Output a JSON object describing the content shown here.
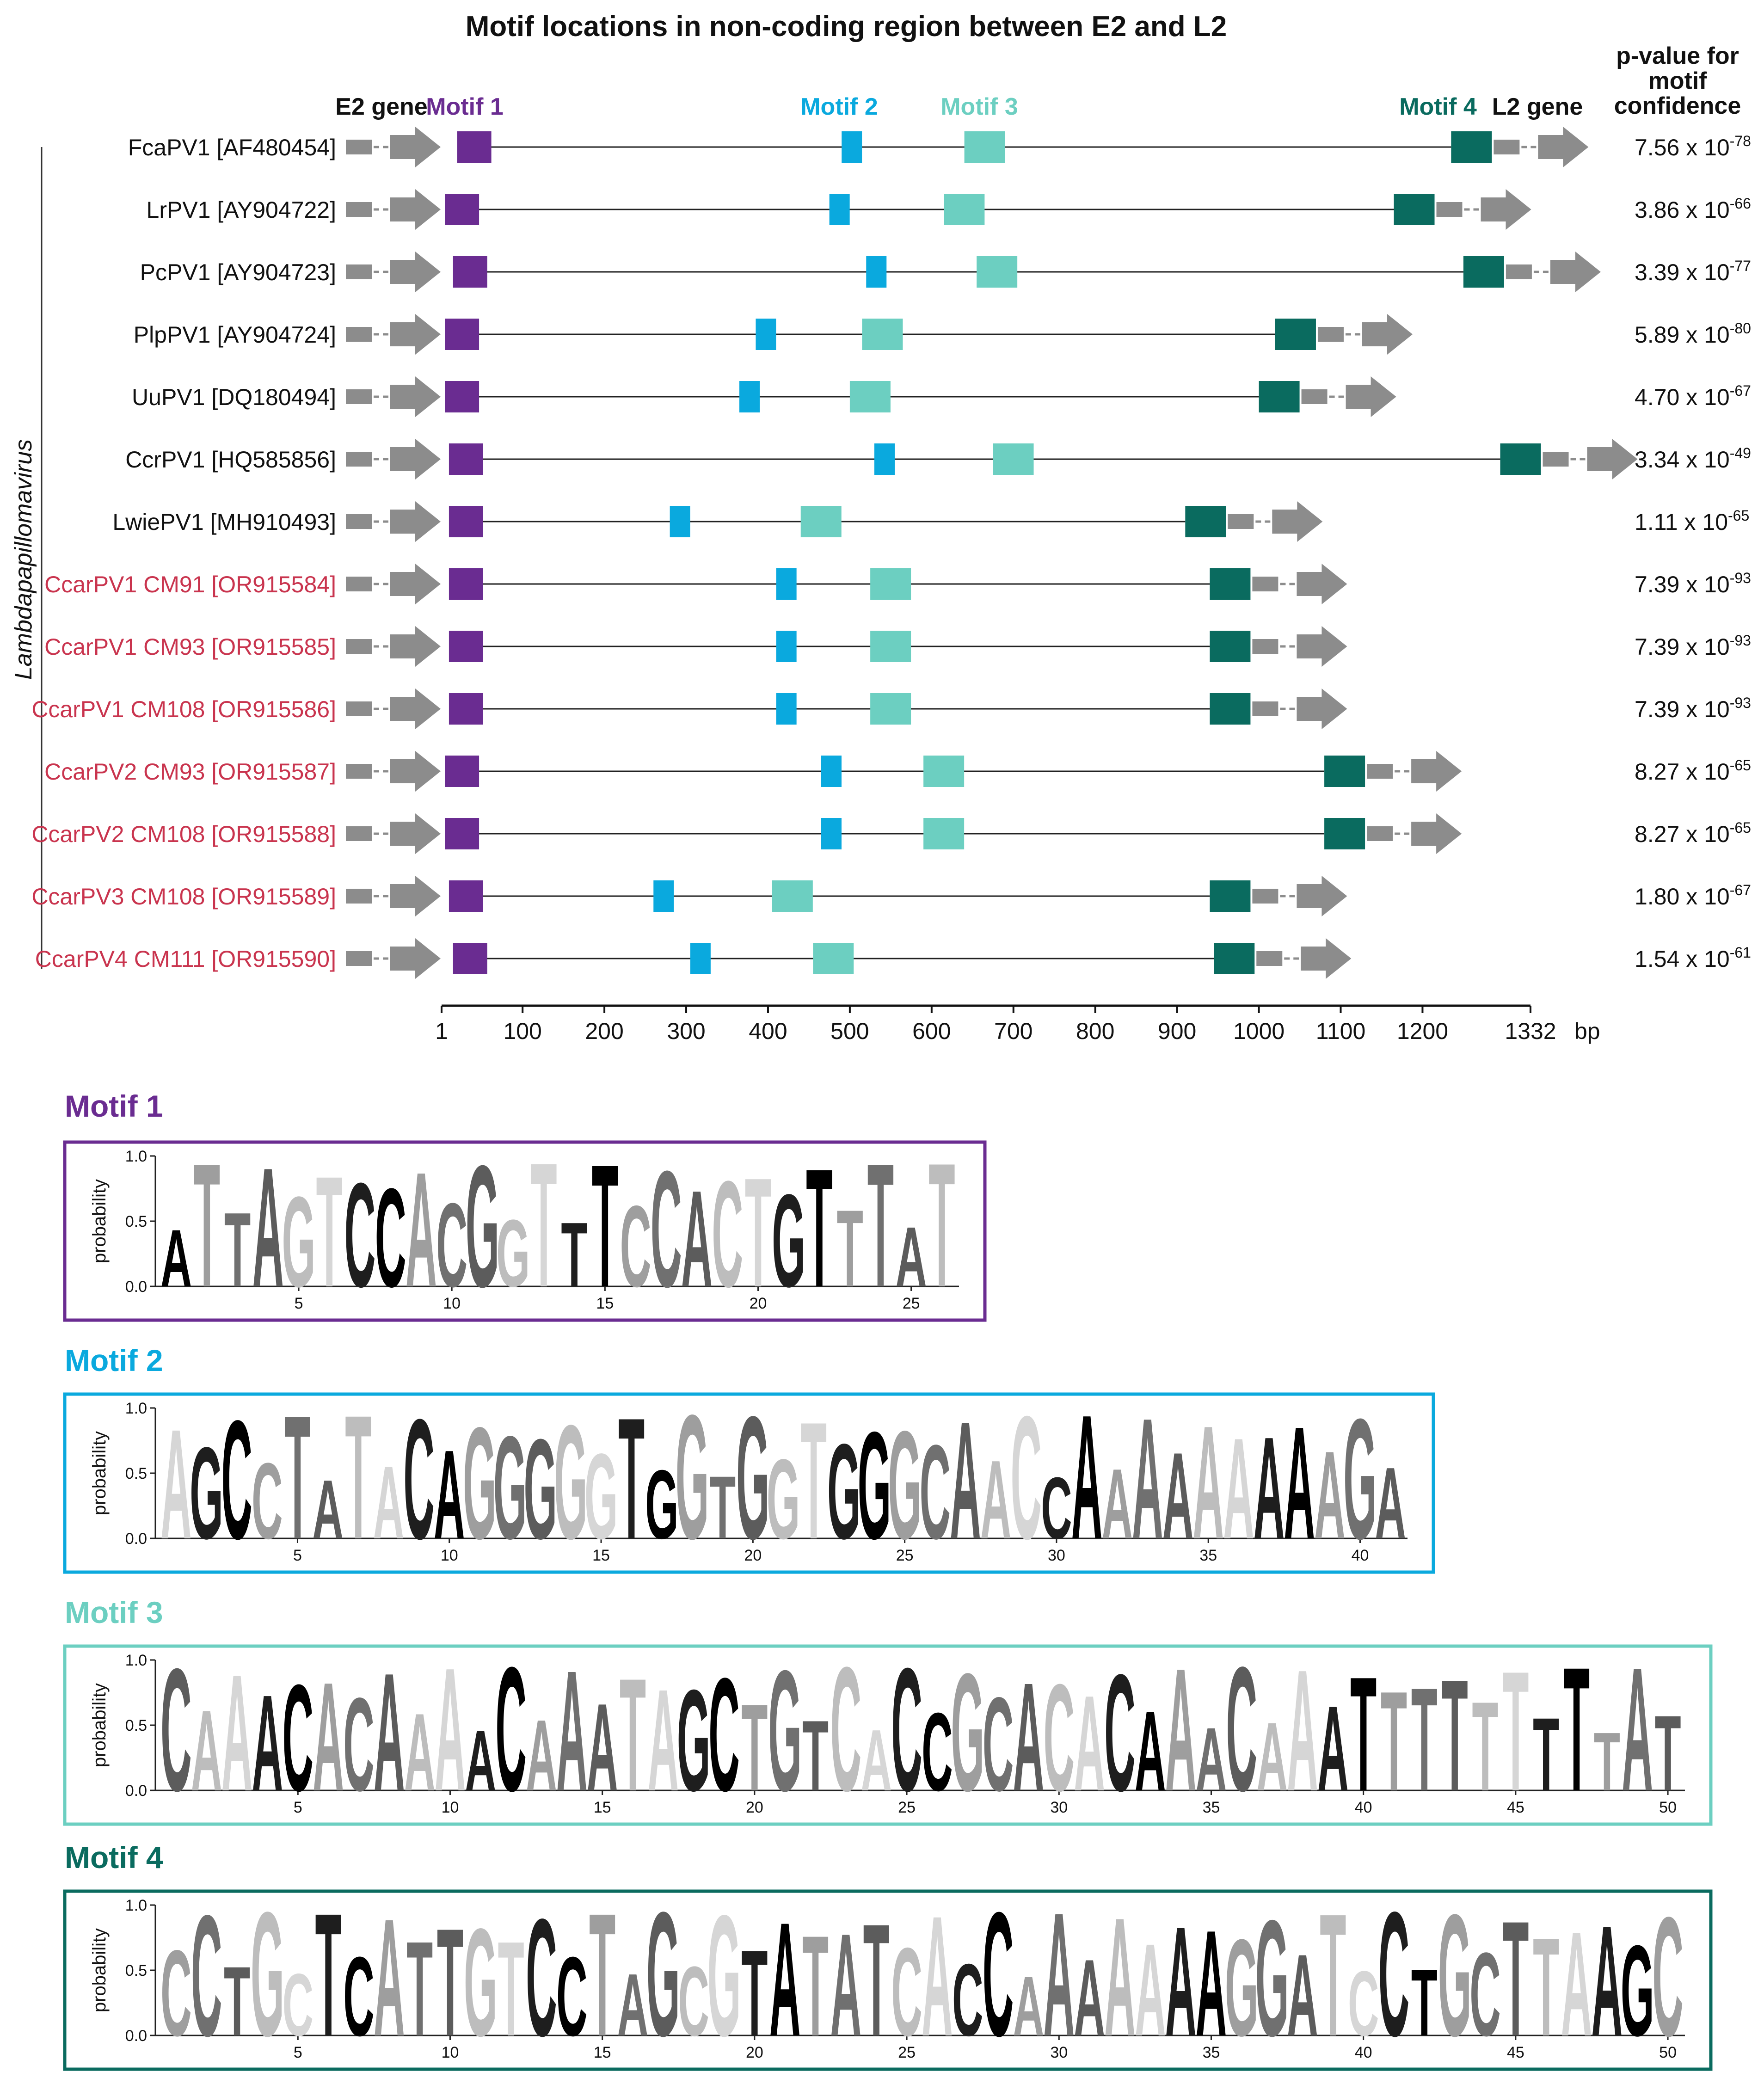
{
  "title": "Motif locations in non-coding region between E2 and L2",
  "header": {
    "e2_label": "E2 gene",
    "l2_label": "L2 gene",
    "pvalue_header": [
      "p-value for",
      "motif",
      "confidence"
    ]
  },
  "genus_label": "Lambdapapillomavirus",
  "colors": {
    "motif1": "#6a2c91",
    "motif2": "#0aa9de",
    "motif3": "#6ccfc1",
    "motif4": "#0a6b5f",
    "gene": "#8c8c8c",
    "new_label": "#c9344e",
    "ref_label": "#111111"
  },
  "motif_names": [
    "Motif 1",
    "Motif 2",
    "Motif 3",
    "Motif 4"
  ],
  "rows": [
    {
      "label": "FcaPV1 [AF480454]",
      "highlight": false,
      "m1": 20,
      "m2": 490,
      "m3": 640,
      "m4": 1235,
      "end": 1270,
      "p_base": "7.56 x 10",
      "p_exp": "-78"
    },
    {
      "label": "LrPV1 [AY904722]",
      "highlight": false,
      "m1": 5,
      "m2": 475,
      "m3": 615,
      "m4": 1165,
      "end": 1200,
      "p_base": "3.86 x 10",
      "p_exp": "-66"
    },
    {
      "label": "PcPV1 [AY904723]",
      "highlight": false,
      "m1": 15,
      "m2": 520,
      "m3": 655,
      "m4": 1250,
      "end": 1285,
      "p_base": "3.39 x 10",
      "p_exp": "-77"
    },
    {
      "label": "PlpPV1 [AY904724]",
      "highlight": false,
      "m1": 5,
      "m2": 385,
      "m3": 515,
      "m4": 1020,
      "end": 1055,
      "p_base": "5.89 x 10",
      "p_exp": "-80"
    },
    {
      "label": "UuPV1 [DQ180494]",
      "highlight": false,
      "m1": 5,
      "m2": 365,
      "m3": 500,
      "m4": 1000,
      "end": 1035,
      "p_base": "4.70 x 10",
      "p_exp": "-67"
    },
    {
      "label": "CcrPV1 [HQ585856]",
      "highlight": false,
      "m1": 10,
      "m2": 530,
      "m3": 675,
      "m4": 1295,
      "end": 1332,
      "p_base": "3.34 x 10",
      "p_exp": "-49"
    },
    {
      "label": "LwiePV1 [MH910493]",
      "highlight": false,
      "m1": 10,
      "m2": 280,
      "m3": 440,
      "m4": 910,
      "end": 945,
      "p_base": "1.11 x 10",
      "p_exp": "-65"
    },
    {
      "label": "CcarPV1 CM91 [OR915584]",
      "highlight": true,
      "m1": 10,
      "m2": 410,
      "m3": 525,
      "m4": 940,
      "end": 975,
      "p_base": "7.39 x 10",
      "p_exp": "-93"
    },
    {
      "label": "CcarPV1 CM93 [OR915585]",
      "highlight": true,
      "m1": 10,
      "m2": 410,
      "m3": 525,
      "m4": 940,
      "end": 975,
      "p_base": "7.39 x 10",
      "p_exp": "-93"
    },
    {
      "label": "CcarPV1 CM108 [OR915586]",
      "highlight": true,
      "m1": 10,
      "m2": 410,
      "m3": 525,
      "m4": 940,
      "end": 975,
      "p_base": "7.39 x 10",
      "p_exp": "-93"
    },
    {
      "label": "CcarPV2 CM93 [OR915587]",
      "highlight": true,
      "m1": 5,
      "m2": 465,
      "m3": 590,
      "m4": 1080,
      "end": 1115,
      "p_base": "8.27 x 10",
      "p_exp": "-65"
    },
    {
      "label": "CcarPV2 CM108 [OR915588]",
      "highlight": true,
      "m1": 5,
      "m2": 465,
      "m3": 590,
      "m4": 1080,
      "end": 1115,
      "p_base": "8.27 x 10",
      "p_exp": "-65"
    },
    {
      "label": "CcarPV3 CM108 [OR915589]",
      "highlight": true,
      "m1": 10,
      "m2": 260,
      "m3": 405,
      "m4": 940,
      "end": 975,
      "p_base": "1.80 x 10",
      "p_exp": "-67"
    },
    {
      "label": "CcarPV4 CM111 [OR915590]",
      "highlight": true,
      "m1": 15,
      "m2": 305,
      "m3": 455,
      "m4": 945,
      "end": 980,
      "p_base": "1.54 x 10",
      "p_exp": "-61"
    }
  ],
  "axis": {
    "min": 1,
    "max": 1332,
    "ticks": [
      1,
      100,
      200,
      300,
      400,
      500,
      600,
      700,
      800,
      900,
      1000,
      1100,
      1200,
      1332
    ],
    "tick_labels": [
      "1",
      "100",
      "200",
      "300",
      "400",
      "500",
      "600",
      "700",
      "800",
      "900",
      "1000",
      "1100",
      "1200",
      "1332"
    ],
    "unit": "bp"
  },
  "logo_ylabel": "probability",
  "logo_yticks": [
    "1.0",
    "0.5",
    "0.0"
  ],
  "logos": [
    {
      "name": "Motif 1",
      "length": 26,
      "consensus": "ATTAGTCCACGGTTTCCACTGTTTAT",
      "ticks": [
        5,
        10,
        15,
        20,
        25
      ]
    },
    {
      "name": "Motif 2",
      "length": 41,
      "consensus": "AGCCTATACAGGGGGTGGTGGTGGGCAACCAAAAAAAAAGA",
      "ticks": [
        5,
        10,
        15,
        20,
        25,
        30,
        35,
        40
      ]
    },
    {
      "name": "Motif 3",
      "length": 50,
      "consensus": "CAAACACAAAACAAATAGCTGTCACCGCACACAAACAAATTTTTTTTTAT",
      "ticks": [
        5,
        10,
        15,
        20,
        25,
        30,
        35,
        40,
        45,
        50
      ]
    },
    {
      "name": "Motif 4",
      "length": 50,
      "consensus": "CCTGCTCATTGTCCTAGCGTATATCACCAAAAAAAGGATCCTGCTTAAGC",
      "ticks": [
        5,
        10,
        15,
        20,
        25,
        30,
        35,
        40,
        45,
        50
      ]
    }
  ]
}
